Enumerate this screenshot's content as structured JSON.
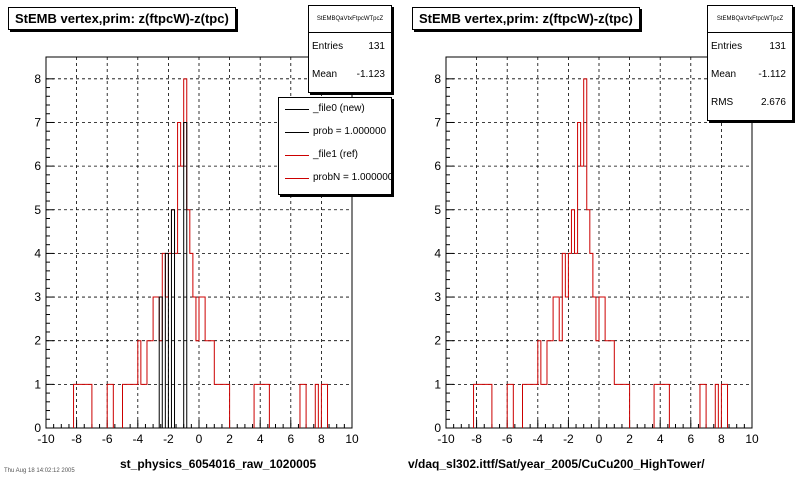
{
  "panels": [
    {
      "title": "StEMB  vertex,prim: z(ftpcW)-z(tpc)",
      "caption": "st_physics_6054016_raw_1020005",
      "stats": {
        "name": "StEMBQaVtxFtpcWTpcZ",
        "rows": [
          {
            "label": "Entries",
            "value": "131"
          },
          {
            "label": "Mean",
            "value": "-1.123"
          }
        ]
      },
      "legend": {
        "entries": [
          {
            "label": "_file0 (new)",
            "color": "#000000"
          },
          {
            "label": "prob = 1.000000",
            "color": "#000000"
          },
          {
            "label": "_file1 (ref)",
            "color": "#cc0000"
          },
          {
            "label": "probN = 1.000000",
            "color": "#cc0000"
          }
        ]
      }
    },
    {
      "title": "StEMB  vertex,prim: z(ftpcW)-z(tpc)",
      "caption": "v/daq_sl302.ittf/Sat/year_2005/CuCu200_HighTower/",
      "stats": {
        "name": "StEMBQaVtxFtpcWTpcZ",
        "rows": [
          {
            "label": "Entries",
            "value": "131"
          },
          {
            "label": "Mean",
            "value": "-1.112"
          },
          {
            "label": "RMS",
            "value": "2.676"
          }
        ]
      },
      "legend": null
    }
  ],
  "corner_note": "Thu Aug 18 14:02:12 2005",
  "colors": {
    "ref": "#cc0000",
    "new": "#000000",
    "grid": "#000000"
  },
  "chart_data": [
    {
      "type": "histogram",
      "title": "StEMB  vertex,prim: z(ftpcW)-z(tpc)",
      "xlim": [
        -10,
        10
      ],
      "ylim": [
        0,
        8.5
      ],
      "xticks": [
        -10,
        -8,
        -6,
        -4,
        -2,
        0,
        2,
        4,
        6,
        8,
        10
      ],
      "yticks": [
        0,
        1,
        2,
        3,
        4,
        5,
        6,
        7,
        8
      ],
      "grid": true,
      "legend_position": "top-right",
      "bin_width": 0.2,
      "series": [
        {
          "name": "_file1 (ref)",
          "color": "#cc0000",
          "bins": [
            [
              -8.2,
              1
            ],
            [
              -8.0,
              1
            ],
            [
              -7.8,
              1
            ],
            [
              -7.6,
              1
            ],
            [
              -7.4,
              1
            ],
            [
              -7.2,
              1
            ],
            [
              -6.0,
              1
            ],
            [
              -5.8,
              1
            ],
            [
              -5.0,
              1
            ],
            [
              -4.8,
              1
            ],
            [
              -4.6,
              1
            ],
            [
              -4.4,
              1
            ],
            [
              -4.2,
              1
            ],
            [
              -4.0,
              2
            ],
            [
              -3.8,
              1
            ],
            [
              -3.6,
              1
            ],
            [
              -3.4,
              2
            ],
            [
              -3.2,
              2
            ],
            [
              -3.0,
              3
            ],
            [
              -2.8,
              3
            ],
            [
              -2.6,
              2
            ],
            [
              -2.4,
              4
            ],
            [
              -2.2,
              3
            ],
            [
              -2.0,
              4
            ],
            [
              -1.8,
              5
            ],
            [
              -1.6,
              4
            ],
            [
              -1.4,
              7
            ],
            [
              -1.2,
              6
            ],
            [
              -1.0,
              8
            ],
            [
              -0.8,
              5
            ],
            [
              -0.6,
              4
            ],
            [
              -0.4,
              3
            ],
            [
              -0.2,
              2
            ],
            [
              0.0,
              3
            ],
            [
              0.2,
              3
            ],
            [
              0.4,
              2
            ],
            [
              0.6,
              2
            ],
            [
              0.8,
              2
            ],
            [
              1.0,
              1
            ],
            [
              1.2,
              1
            ],
            [
              1.4,
              1
            ],
            [
              1.6,
              1
            ],
            [
              1.8,
              1
            ],
            [
              3.6,
              1
            ],
            [
              3.8,
              1
            ],
            [
              4.0,
              1
            ],
            [
              4.2,
              1
            ],
            [
              4.4,
              1
            ],
            [
              6.6,
              1
            ],
            [
              6.8,
              1
            ],
            [
              7.6,
              1
            ],
            [
              8.0,
              1
            ],
            [
              8.2,
              1
            ]
          ]
        },
        {
          "name": "_file0 (new)",
          "color": "#000000",
          "bins": [
            [
              -2.6,
              3
            ],
            [
              -2.2,
              4
            ],
            [
              -1.8,
              5
            ],
            [
              -1.0,
              7
            ]
          ]
        }
      ]
    },
    {
      "type": "histogram",
      "title": "StEMB  vertex,prim: z(ftpcW)-z(tpc)",
      "xlim": [
        -10,
        10
      ],
      "ylim": [
        0,
        8.5
      ],
      "xticks": [
        -10,
        -8,
        -6,
        -4,
        -2,
        0,
        2,
        4,
        6,
        8,
        10
      ],
      "yticks": [
        0,
        1,
        2,
        3,
        4,
        5,
        6,
        7,
        8
      ],
      "grid": true,
      "bin_width": 0.2,
      "series": [
        {
          "name": "",
          "color": "#cc0000",
          "bins": [
            [
              -8.2,
              1
            ],
            [
              -8.0,
              1
            ],
            [
              -7.8,
              1
            ],
            [
              -7.6,
              1
            ],
            [
              -7.4,
              1
            ],
            [
              -7.2,
              1
            ],
            [
              -6.0,
              1
            ],
            [
              -5.8,
              1
            ],
            [
              -5.0,
              1
            ],
            [
              -4.8,
              1
            ],
            [
              -4.6,
              1
            ],
            [
              -4.4,
              1
            ],
            [
              -4.2,
              1
            ],
            [
              -4.0,
              2
            ],
            [
              -3.8,
              1
            ],
            [
              -3.6,
              1
            ],
            [
              -3.4,
              2
            ],
            [
              -3.2,
              2
            ],
            [
              -3.0,
              3
            ],
            [
              -2.8,
              3
            ],
            [
              -2.6,
              2
            ],
            [
              -2.4,
              4
            ],
            [
              -2.2,
              3
            ],
            [
              -2.0,
              4
            ],
            [
              -1.8,
              5
            ],
            [
              -1.6,
              4
            ],
            [
              -1.4,
              7
            ],
            [
              -1.2,
              6
            ],
            [
              -1.0,
              8
            ],
            [
              -0.8,
              5
            ],
            [
              -0.6,
              4
            ],
            [
              -0.4,
              3
            ],
            [
              -0.2,
              2
            ],
            [
              0.0,
              3
            ],
            [
              0.2,
              3
            ],
            [
              0.4,
              2
            ],
            [
              0.6,
              2
            ],
            [
              0.8,
              2
            ],
            [
              1.0,
              1
            ],
            [
              1.2,
              1
            ],
            [
              1.4,
              1
            ],
            [
              1.6,
              1
            ],
            [
              1.8,
              1
            ],
            [
              3.6,
              1
            ],
            [
              3.8,
              1
            ],
            [
              4.0,
              1
            ],
            [
              4.2,
              1
            ],
            [
              4.4,
              1
            ],
            [
              6.6,
              1
            ],
            [
              6.8,
              1
            ],
            [
              7.6,
              1
            ],
            [
              8.0,
              1
            ],
            [
              8.2,
              1
            ]
          ]
        }
      ]
    }
  ]
}
